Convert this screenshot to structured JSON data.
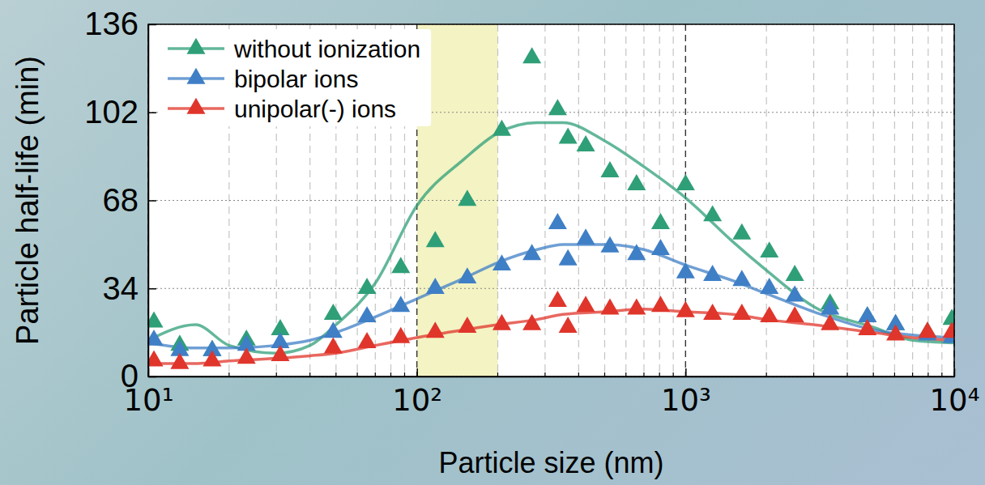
{
  "chart_data": {
    "type": "scatter",
    "x_label": "Particle size (nm)",
    "y_label": "Particle half-life (min)",
    "log": "x",
    "grid": true,
    "legend": "upper left",
    "xlim": [
      10,
      10000
    ],
    "ylim": [
      0,
      136
    ],
    "xticks": [
      {
        "value": 10,
        "label": "10¹"
      },
      {
        "value": 100,
        "label": "10²"
      },
      {
        "value": 1000,
        "label": "10³"
      },
      {
        "value": 10000,
        "label": "10⁴"
      }
    ],
    "xticks_minor": [
      20,
      30,
      40,
      50,
      60,
      70,
      80,
      90,
      200,
      300,
      400,
      500,
      600,
      700,
      800,
      900,
      2000,
      3000,
      4000,
      5000,
      6000,
      7000,
      8000,
      9000
    ],
    "yticks": [
      0,
      34,
      68,
      102,
      136
    ],
    "shaded_range": [
      100,
      200
    ],
    "series": [
      {
        "name": "without ionization",
        "color": "#2f9f78",
        "marker": "triangle",
        "x": [
          10.5,
          13.1,
          17.3,
          23.2,
          31,
          48.8,
          65.2,
          87.1,
          117,
          154,
          207,
          268,
          334,
          365,
          425,
          523,
          657,
          807,
          1000,
          1260,
          1620,
          2050,
          2550,
          3450,
          4750,
          6050,
          7950,
          9800
        ],
        "values": [
          21,
          12,
          10,
          14,
          18,
          24,
          34,
          42,
          52,
          68,
          95,
          123,
          103,
          92,
          89,
          79,
          74,
          59,
          74,
          62,
          55,
          48,
          39,
          28,
          23,
          20,
          17,
          22
        ],
        "fit_x": [
          10,
          15,
          20,
          30,
          40,
          50,
          70,
          100,
          150,
          200,
          280,
          350,
          500,
          700,
          1000,
          1500,
          2000,
          3000,
          5000,
          7000,
          10000
        ],
        "fit_values": [
          14,
          20,
          12,
          9,
          12,
          20,
          36,
          66,
          84,
          94,
          98,
          98,
          91,
          81,
          69,
          52,
          41,
          27,
          19,
          14,
          13
        ]
      },
      {
        "name": "bipolar ions",
        "color": "#3f7fc6",
        "marker": "triangle",
        "x": [
          10.5,
          13.1,
          17.3,
          23.2,
          31,
          48.8,
          65.2,
          87.1,
          117,
          154,
          207,
          268,
          334,
          365,
          425,
          523,
          657,
          807,
          1000,
          1260,
          1620,
          2050,
          2550,
          3450,
          4750,
          6050,
          7950,
          9800
        ],
        "values": [
          14,
          10,
          10,
          12,
          13,
          17,
          23,
          27,
          34,
          38,
          43,
          47,
          59,
          45,
          53,
          50,
          47,
          49,
          40,
          39,
          37,
          34,
          31,
          26,
          23,
          20,
          16,
          15
        ],
        "fit_x": [
          10,
          15,
          20,
          30,
          40,
          50,
          70,
          100,
          150,
          200,
          280,
          350,
          500,
          700,
          1000,
          1500,
          2000,
          3000,
          5000,
          7000,
          10000
        ],
        "fit_values": [
          13,
          11,
          11,
          12,
          14,
          17,
          23,
          30,
          38,
          44,
          49,
          51,
          51,
          49,
          43,
          37,
          32,
          25,
          18,
          16,
          15
        ]
      },
      {
        "name": "unipolar(-) ions",
        "color": "#e0352b",
        "marker": "triangle",
        "x": [
          10.5,
          13.1,
          17.3,
          23.2,
          31,
          48.8,
          65.2,
          87.1,
          117,
          154,
          207,
          268,
          334,
          365,
          425,
          523,
          657,
          807,
          1000,
          1260,
          1620,
          2050,
          2550,
          3450,
          4750,
          6050,
          7950,
          9800
        ],
        "values": [
          6,
          5,
          6,
          7,
          8,
          11,
          13,
          15,
          17,
          19,
          20,
          20,
          29,
          19,
          27,
          26,
          26,
          27,
          25,
          24,
          24,
          23,
          23,
          20,
          18,
          16,
          17,
          17
        ],
        "fit_x": [
          10,
          15,
          20,
          30,
          40,
          50,
          70,
          100,
          150,
          200,
          280,
          350,
          500,
          700,
          1000,
          1500,
          2000,
          3000,
          5000,
          7000,
          10000
        ],
        "fit_values": [
          5,
          5,
          6,
          7,
          8,
          9,
          12,
          15,
          18,
          20,
          22,
          24,
          25,
          26,
          25,
          24,
          22,
          20,
          17,
          15,
          14
        ]
      }
    ]
  }
}
